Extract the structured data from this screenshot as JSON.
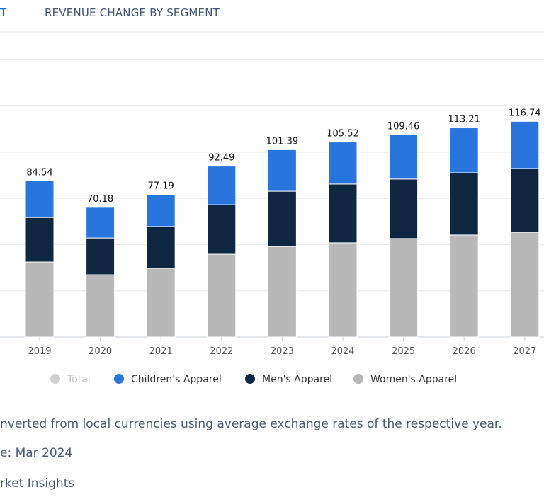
{
  "tabs": {
    "active_fragment": "T",
    "revenue_change": "REVENUE CHANGE BY SEGMENT"
  },
  "chart_data": {
    "type": "bar",
    "stacked": true,
    "categories": [
      "2019",
      "2020",
      "2021",
      "2022",
      "2023",
      "2024",
      "2025",
      "2026",
      "2027"
    ],
    "series": [
      {
        "name": "Women's Apparel",
        "color": "#b8b8b8",
        "values": [
          40.6,
          33.7,
          37.2,
          44.8,
          49.0,
          51.0,
          53.3,
          55.2,
          56.7
        ]
      },
      {
        "name": "Men's Apparel",
        "color": "#0f2741",
        "values": [
          24.1,
          19.9,
          22.6,
          26.8,
          29.9,
          31.8,
          32.2,
          33.7,
          34.5
        ]
      },
      {
        "name": "Children's Apparel",
        "color": "#2876dd",
        "values": [
          19.84,
          16.58,
          17.39,
          20.89,
          22.49,
          22.72,
          23.96,
          24.31,
          25.54
        ]
      }
    ],
    "totals": [
      "84.54",
      "70.18",
      "77.19",
      "92.49",
      "101.39",
      "105.52",
      "109.46",
      "113.21",
      "116.74"
    ],
    "legend": [
      {
        "name": "Total",
        "color": "#d0d0d0",
        "muted": true
      },
      {
        "name": "Children's Apparel",
        "color": "#2876dd"
      },
      {
        "name": "Men's Apparel",
        "color": "#0f2741"
      },
      {
        "name": "Women's Apparel",
        "color": "#b8b8b8"
      }
    ],
    "legend_position": "bottom",
    "ylim": [
      0,
      150
    ],
    "grid": true,
    "xlabel": "",
    "ylabel": ""
  },
  "notes": {
    "currency": "nverted from local currencies using average exchange rates of the respective year.",
    "date": "e: Mar 2024",
    "source": "rket Insights"
  }
}
